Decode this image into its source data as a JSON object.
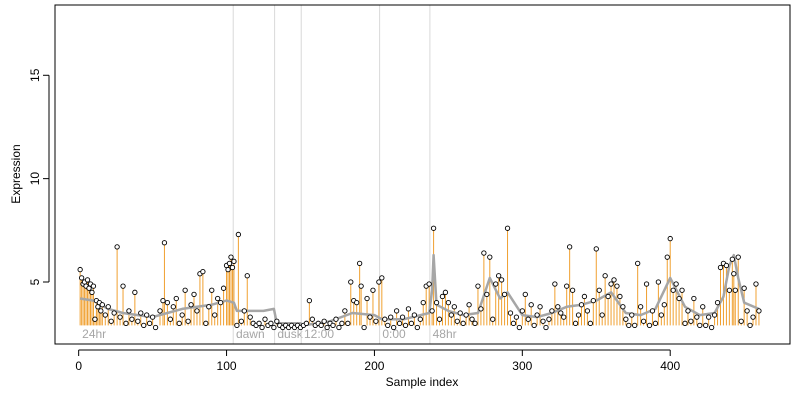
{
  "chart_data": {
    "type": "scatter",
    "title": "",
    "xlabel": "Sample index",
    "ylabel": "Expression",
    "xlim": [
      -16,
      481
    ],
    "ylim": [
      2.0,
      18.4
    ],
    "xticks": [
      0,
      100,
      200,
      300,
      400
    ],
    "yticks": [
      5,
      10,
      15
    ],
    "baseline": 2.9,
    "colors": {
      "up": "#f0a030",
      "down": "#7aa2e6",
      "smooth": "#a6a6a6",
      "point_stroke": "#000000",
      "separator": "#d9d9d9",
      "region_label": "#a6a6a6"
    },
    "regions": [
      {
        "label": "24hr",
        "start": 1
      },
      {
        "label": "dawn",
        "start": 105
      },
      {
        "label": "dusk",
        "start": 133
      },
      {
        "label": "12:00",
        "start": 151
      },
      {
        "label": "0:00",
        "start": 204
      },
      {
        "label": "48hr",
        "start": 238
      }
    ],
    "points": [
      [
        1,
        5.6
      ],
      [
        2,
        5.2
      ],
      [
        3,
        4.9
      ],
      [
        4,
        5.0
      ],
      [
        5,
        4.8
      ],
      [
        6,
        5.1
      ],
      [
        7,
        4.7
      ],
      [
        8,
        4.9
      ],
      [
        9,
        4.5
      ],
      [
        10,
        4.8
      ],
      [
        11,
        3.2
      ],
      [
        12,
        4.1
      ],
      [
        13,
        3.8
      ],
      [
        14,
        4.0
      ],
      [
        15,
        3.6
      ],
      [
        16,
        3.9
      ],
      [
        18,
        3.4
      ],
      [
        20,
        3.8
      ],
      [
        22,
        3.1
      ],
      [
        24,
        3.5
      ],
      [
        26,
        6.7
      ],
      [
        28,
        3.3
      ],
      [
        30,
        4.8
      ],
      [
        32,
        3.0
      ],
      [
        34,
        3.6
      ],
      [
        36,
        3.2
      ],
      [
        38,
        4.5
      ],
      [
        40,
        3.1
      ],
      [
        42,
        3.5
      ],
      [
        44,
        2.9
      ],
      [
        46,
        3.4
      ],
      [
        48,
        3.0
      ],
      [
        50,
        3.3
      ],
      [
        52,
        2.8
      ],
      [
        55,
        3.6
      ],
      [
        57,
        4.1
      ],
      [
        58,
        6.9
      ],
      [
        60,
        4.0
      ],
      [
        62,
        3.2
      ],
      [
        64,
        3.8
      ],
      [
        66,
        4.2
      ],
      [
        68,
        3.0
      ],
      [
        70,
        3.4
      ],
      [
        72,
        4.6
      ],
      [
        74,
        3.1
      ],
      [
        76,
        3.9
      ],
      [
        78,
        4.4
      ],
      [
        80,
        3.6
      ],
      [
        82,
        5.4
      ],
      [
        84,
        5.5
      ],
      [
        86,
        3.0
      ],
      [
        88,
        3.8
      ],
      [
        90,
        4.6
      ],
      [
        92,
        3.4
      ],
      [
        94,
        4.2
      ],
      [
        96,
        4.0
      ],
      [
        98,
        4.7
      ],
      [
        100,
        5.8
      ],
      [
        101,
        5.6
      ],
      [
        102,
        5.9
      ],
      [
        103,
        6.2
      ],
      [
        104,
        5.7
      ],
      [
        105,
        6.0
      ],
      [
        107,
        2.9
      ],
      [
        108,
        7.3
      ],
      [
        110,
        3.1
      ],
      [
        112,
        3.6
      ],
      [
        114,
        5.3
      ],
      [
        116,
        3.3
      ],
      [
        118,
        3.0
      ],
      [
        120,
        2.9
      ],
      [
        122,
        3.0
      ],
      [
        124,
        2.8
      ],
      [
        126,
        3.2
      ],
      [
        128,
        2.9
      ],
      [
        130,
        3.0
      ],
      [
        132,
        2.8
      ],
      [
        134,
        3.1
      ],
      [
        136,
        2.9
      ],
      [
        138,
        2.8
      ],
      [
        140,
        2.9
      ],
      [
        142,
        2.8
      ],
      [
        144,
        2.9
      ],
      [
        146,
        2.8
      ],
      [
        148,
        2.9
      ],
      [
        150,
        2.8
      ],
      [
        152,
        2.9
      ],
      [
        154,
        3.0
      ],
      [
        156,
        4.1
      ],
      [
        158,
        3.2
      ],
      [
        160,
        2.9
      ],
      [
        162,
        3.0
      ],
      [
        164,
        2.9
      ],
      [
        166,
        3.1
      ],
      [
        168,
        2.8
      ],
      [
        170,
        3.0
      ],
      [
        172,
        2.9
      ],
      [
        174,
        3.2
      ],
      [
        176,
        2.8
      ],
      [
        178,
        3.0
      ],
      [
        180,
        3.6
      ],
      [
        182,
        3.0
      ],
      [
        184,
        5.0
      ],
      [
        186,
        4.1
      ],
      [
        188,
        4.0
      ],
      [
        190,
        5.9
      ],
      [
        191,
        4.8
      ],
      [
        193,
        2.8
      ],
      [
        195,
        4.2
      ],
      [
        197,
        3.3
      ],
      [
        199,
        4.6
      ],
      [
        201,
        3.1
      ],
      [
        203,
        5.0
      ],
      [
        205,
        5.2
      ],
      [
        207,
        3.2
      ],
      [
        209,
        2.9
      ],
      [
        211,
        3.3
      ],
      [
        213,
        2.8
      ],
      [
        215,
        3.6
      ],
      [
        217,
        3.0
      ],
      [
        219,
        3.3
      ],
      [
        221,
        2.9
      ],
      [
        223,
        3.7
      ],
      [
        225,
        3.0
      ],
      [
        227,
        3.4
      ],
      [
        229,
        2.8
      ],
      [
        231,
        3.2
      ],
      [
        233,
        4.0
      ],
      [
        235,
        4.8
      ],
      [
        237,
        4.9
      ],
      [
        239,
        3.6
      ],
      [
        240,
        7.6
      ],
      [
        242,
        4.0
      ],
      [
        244,
        3.2
      ],
      [
        246,
        4.3
      ],
      [
        248,
        4.5
      ],
      [
        250,
        4.0
      ],
      [
        252,
        3.4
      ],
      [
        254,
        3.8
      ],
      [
        256,
        3.1
      ],
      [
        258,
        3.5
      ],
      [
        260,
        3.0
      ],
      [
        262,
        3.4
      ],
      [
        264,
        3.9
      ],
      [
        266,
        3.2
      ],
      [
        268,
        3.0
      ],
      [
        270,
        4.8
      ],
      [
        272,
        3.7
      ],
      [
        274,
        6.4
      ],
      [
        276,
        4.4
      ],
      [
        278,
        6.2
      ],
      [
        280,
        3.2
      ],
      [
        282,
        4.9
      ],
      [
        284,
        5.3
      ],
      [
        286,
        5.1
      ],
      [
        288,
        4.4
      ],
      [
        290,
        7.6
      ],
      [
        292,
        3.5
      ],
      [
        294,
        3.0
      ],
      [
        296,
        3.3
      ],
      [
        298,
        2.8
      ],
      [
        300,
        3.6
      ],
      [
        302,
        4.4
      ],
      [
        304,
        3.2
      ],
      [
        306,
        3.9
      ],
      [
        308,
        2.9
      ],
      [
        310,
        3.4
      ],
      [
        312,
        3.8
      ],
      [
        314,
        3.1
      ],
      [
        316,
        2.8
      ],
      [
        318,
        3.2
      ],
      [
        320,
        3.6
      ],
      [
        322,
        4.9
      ],
      [
        324,
        3.8
      ],
      [
        326,
        3.5
      ],
      [
        328,
        3.3
      ],
      [
        330,
        4.8
      ],
      [
        332,
        6.7
      ],
      [
        334,
        4.6
      ],
      [
        336,
        3.0
      ],
      [
        338,
        3.4
      ],
      [
        340,
        3.9
      ],
      [
        342,
        4.3
      ],
      [
        344,
        3.6
      ],
      [
        346,
        3.0
      ],
      [
        348,
        4.1
      ],
      [
        350,
        6.6
      ],
      [
        352,
        4.6
      ],
      [
        354,
        3.4
      ],
      [
        356,
        5.3
      ],
      [
        358,
        4.3
      ],
      [
        360,
        4.9
      ],
      [
        362,
        5.1
      ],
      [
        364,
        4.8
      ],
      [
        366,
        4.3
      ],
      [
        368,
        3.8
      ],
      [
        370,
        3.2
      ],
      [
        372,
        2.9
      ],
      [
        374,
        3.4
      ],
      [
        376,
        2.9
      ],
      [
        378,
        5.9
      ],
      [
        380,
        3.8
      ],
      [
        382,
        3.1
      ],
      [
        384,
        4.9
      ],
      [
        386,
        2.9
      ],
      [
        388,
        3.6
      ],
      [
        390,
        3.0
      ],
      [
        392,
        5.0
      ],
      [
        394,
        3.4
      ],
      [
        396,
        3.9
      ],
      [
        398,
        6.2
      ],
      [
        400,
        7.1
      ],
      [
        402,
        4.6
      ],
      [
        404,
        4.9
      ],
      [
        406,
        4.2
      ],
      [
        408,
        4.6
      ],
      [
        410,
        3.0
      ],
      [
        412,
        3.6
      ],
      [
        414,
        3.1
      ],
      [
        416,
        4.2
      ],
      [
        418,
        3.3
      ],
      [
        420,
        2.9
      ],
      [
        422,
        3.8
      ],
      [
        424,
        2.9
      ],
      [
        426,
        3.3
      ],
      [
        428,
        2.8
      ],
      [
        430,
        3.4
      ],
      [
        432,
        4.0
      ],
      [
        434,
        5.7
      ],
      [
        436,
        5.9
      ],
      [
        438,
        5.8
      ],
      [
        440,
        4.6
      ],
      [
        442,
        6.1
      ],
      [
        443,
        5.4
      ],
      [
        444,
        4.6
      ],
      [
        446,
        6.2
      ],
      [
        448,
        3.1
      ],
      [
        450,
        4.7
      ],
      [
        452,
        3.6
      ],
      [
        454,
        2.9
      ],
      [
        456,
        3.3
      ],
      [
        458,
        4.9
      ],
      [
        460,
        3.6
      ]
    ],
    "smooth": [
      [
        1,
        4.2
      ],
      [
        10,
        4.1
      ],
      [
        20,
        3.7
      ],
      [
        30,
        3.5
      ],
      [
        40,
        3.4
      ],
      [
        50,
        3.3
      ],
      [
        60,
        3.5
      ],
      [
        70,
        3.7
      ],
      [
        80,
        3.8
      ],
      [
        90,
        3.9
      ],
      [
        100,
        4.1
      ],
      [
        105,
        4.0
      ],
      [
        107,
        3.6
      ],
      [
        115,
        3.6
      ],
      [
        125,
        3.6
      ],
      [
        132,
        3.7
      ],
      [
        134,
        3.0
      ],
      [
        150,
        3.0
      ],
      [
        152,
        2.9
      ],
      [
        170,
        3.1
      ],
      [
        185,
        3.5
      ],
      [
        200,
        3.4
      ],
      [
        205,
        3.2
      ],
      [
        220,
        3.2
      ],
      [
        237,
        3.5
      ],
      [
        239,
        4.6
      ],
      [
        240,
        6.3
      ],
      [
        242,
        3.9
      ],
      [
        250,
        3.6
      ],
      [
        260,
        3.4
      ],
      [
        270,
        3.5
      ],
      [
        278,
        5.2
      ],
      [
        285,
        4.2
      ],
      [
        290,
        4.5
      ],
      [
        300,
        3.4
      ],
      [
        310,
        3.3
      ],
      [
        320,
        3.5
      ],
      [
        330,
        3.8
      ],
      [
        340,
        3.9
      ],
      [
        350,
        4.1
      ],
      [
        360,
        4.5
      ],
      [
        370,
        3.5
      ],
      [
        380,
        3.4
      ],
      [
        390,
        3.7
      ],
      [
        400,
        5.2
      ],
      [
        410,
        3.8
      ],
      [
        420,
        3.4
      ],
      [
        430,
        3.5
      ],
      [
        436,
        4.3
      ],
      [
        440,
        5.8
      ],
      [
        443,
        6.3
      ],
      [
        446,
        5.2
      ],
      [
        450,
        4.0
      ],
      [
        460,
        3.7
      ]
    ]
  }
}
